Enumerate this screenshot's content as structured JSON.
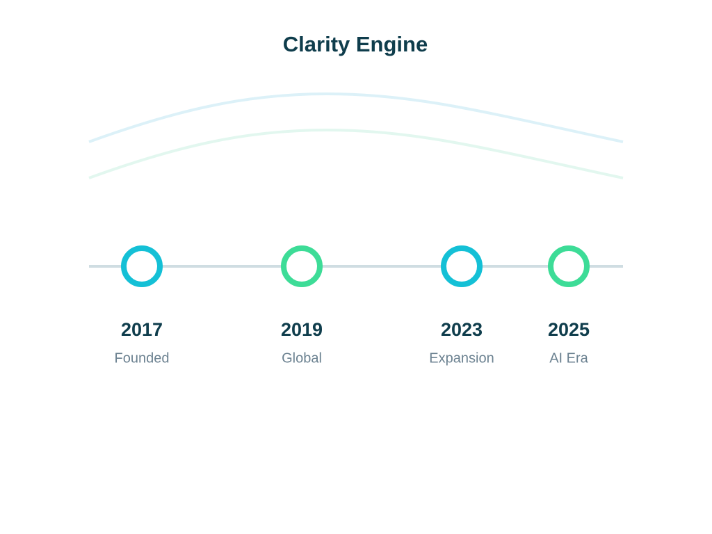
{
  "header": {
    "title": "Clarity Engine"
  },
  "milestones": [
    {
      "year": "2017",
      "label": "Founded"
    },
    {
      "year": "2019",
      "label": "Global"
    },
    {
      "year": "2023",
      "label": "Expansion"
    },
    {
      "year": "2025",
      "label": "AI Era"
    }
  ]
}
